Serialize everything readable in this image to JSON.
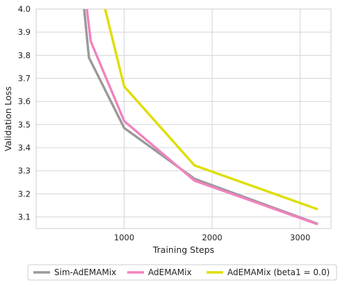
{
  "chart_data": {
    "type": "line",
    "xlabel": "Training Steps",
    "ylabel": "Validation Loss",
    "xlim": [
      0,
      3350
    ],
    "ylim": [
      3.05,
      4.0
    ],
    "xticks": [
      1000,
      2000,
      3000
    ],
    "yticks": [
      3.1,
      3.2,
      3.3,
      3.4,
      3.5,
      3.6,
      3.7,
      3.8,
      3.9,
      4.0
    ],
    "xtick_labels": [
      "1000",
      "2000",
      "3000"
    ],
    "ytick_labels": [
      "3.1",
      "3.2",
      "3.3",
      "3.4",
      "3.5",
      "3.6",
      "3.7",
      "3.8",
      "3.9",
      "4.0"
    ],
    "grid": true,
    "legend_position": "bottom",
    "series": [
      {
        "name": "Sim-AdEMAMix",
        "color": "#999999",
        "x": [
          540,
          600,
          1000,
          1800,
          3200
        ],
        "y": [
          4.02,
          3.79,
          3.485,
          3.265,
          3.07
        ]
      },
      {
        "name": "AdEMAMix",
        "color": "#f082be",
        "x": [
          570,
          620,
          1000,
          1800,
          3200
        ],
        "y": [
          4.02,
          3.86,
          3.515,
          3.257,
          3.068
        ]
      },
      {
        "name": "AdEMAMix (beta1 = 0.0)",
        "color": "#dede00",
        "x": [
          770,
          1000,
          1800,
          3200
        ],
        "y": [
          4.02,
          3.665,
          3.323,
          3.133
        ]
      }
    ]
  }
}
